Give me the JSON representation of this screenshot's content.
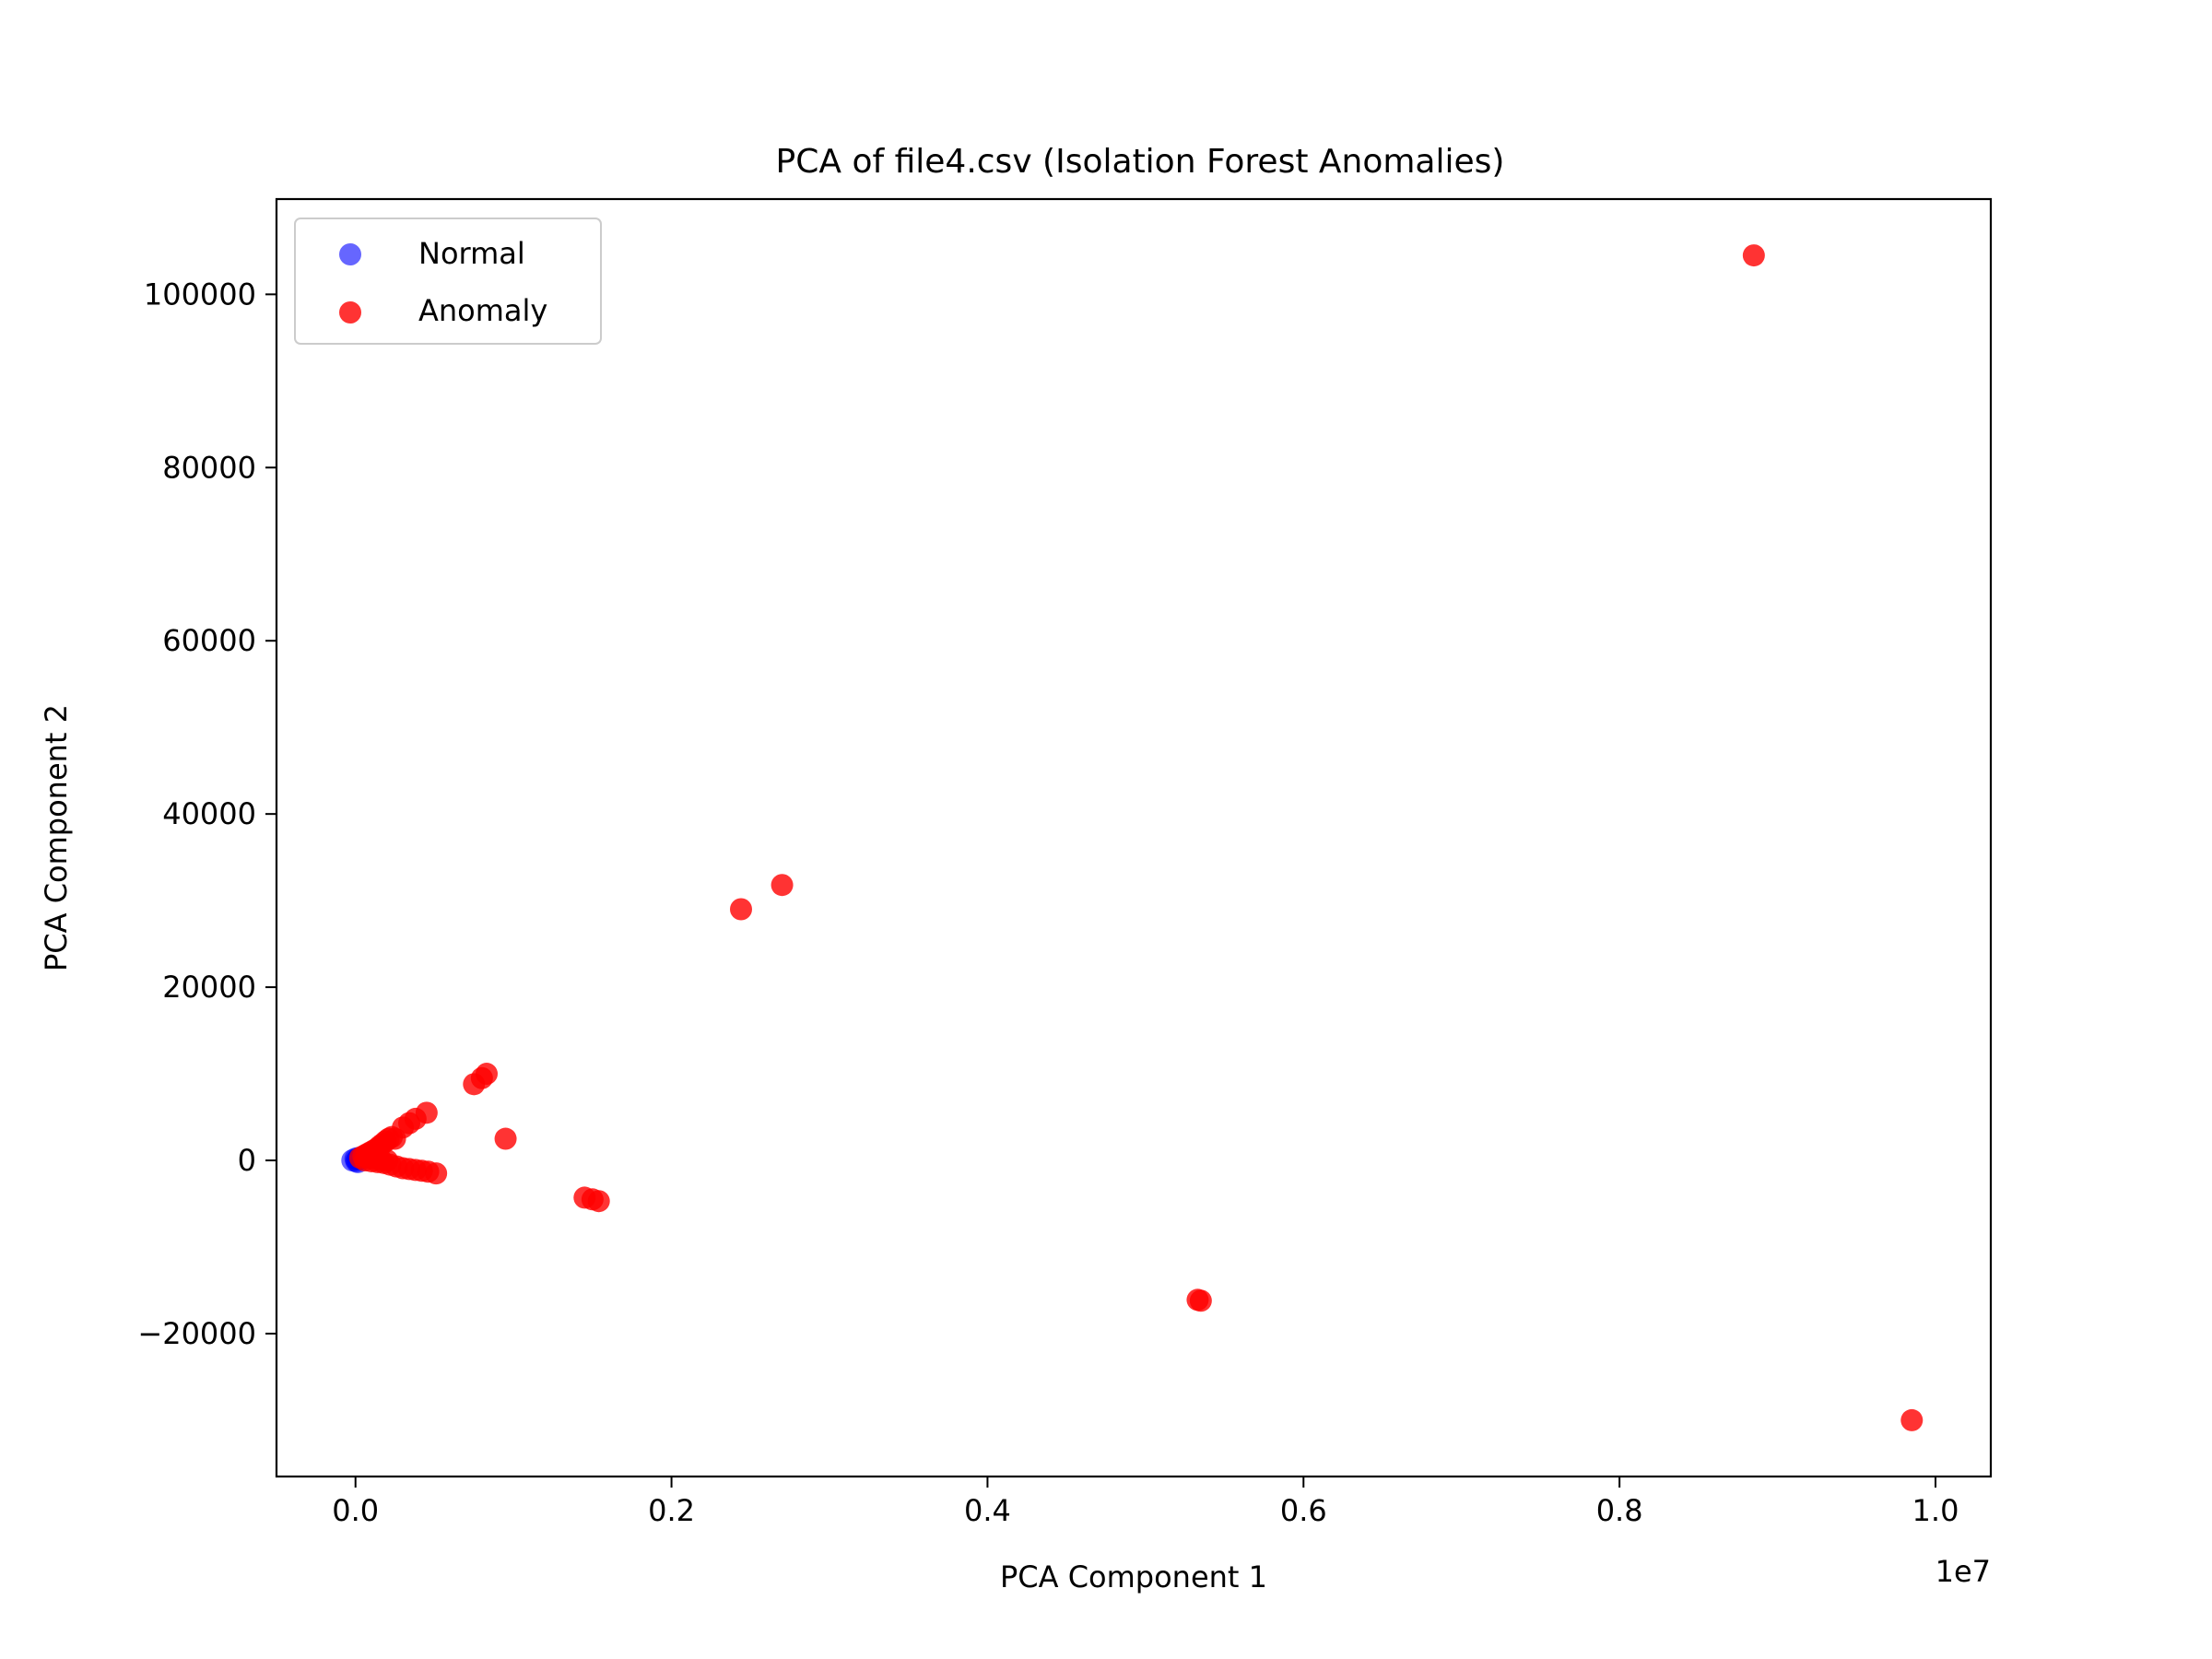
{
  "chart_data": {
    "type": "scatter",
    "title": "PCA of file4.csv (Isolation Forest Anomalies)",
    "xlabel": "PCA Component 1",
    "ylabel": "PCA Component 2",
    "x_offset_label": "1e7",
    "xlim": [
      -500000,
      10350000
    ],
    "ylim": [
      -36500,
      111000
    ],
    "x_ticks": [
      0,
      2000000,
      4000000,
      6000000,
      8000000,
      10000000
    ],
    "x_tick_labels": [
      "0.0",
      "0.2",
      "0.4",
      "0.6",
      "0.8",
      "1.0"
    ],
    "y_ticks": [
      -20000,
      0,
      20000,
      40000,
      60000,
      80000,
      100000
    ],
    "y_tick_labels": [
      "−20000",
      "0",
      "20000",
      "40000",
      "60000",
      "80000",
      "100000"
    ],
    "grid": false,
    "legend_position": "top-left",
    "series": [
      {
        "name": "Normal",
        "color": "#0000ff",
        "alpha": 0.6,
        "points": [
          {
            "x": -20000,
            "y": 0
          },
          {
            "x": 0,
            "y": 200
          },
          {
            "x": 5000,
            "y": -100
          },
          {
            "x": 10000,
            "y": 100
          },
          {
            "x": 20000,
            "y": 300
          },
          {
            "x": 15000,
            "y": -200
          }
        ]
      },
      {
        "name": "Anomaly",
        "color": "#ff0000",
        "alpha": 0.8,
        "points": [
          {
            "x": 30000,
            "y": 300
          },
          {
            "x": 50000,
            "y": 500
          },
          {
            "x": 70000,
            "y": 700
          },
          {
            "x": 90000,
            "y": 900
          },
          {
            "x": 110000,
            "y": 1100
          },
          {
            "x": 130000,
            "y": 1300
          },
          {
            "x": 150000,
            "y": 1600
          },
          {
            "x": 170000,
            "y": 1900
          },
          {
            "x": 190000,
            "y": 2200
          },
          {
            "x": 210000,
            "y": 2500
          },
          {
            "x": 230000,
            "y": 2700
          },
          {
            "x": 250000,
            "y": 2500
          },
          {
            "x": 300000,
            "y": 3800
          },
          {
            "x": 340000,
            "y": 4300
          },
          {
            "x": 380000,
            "y": 4800
          },
          {
            "x": 450000,
            "y": 5500
          },
          {
            "x": 60000,
            "y": 0
          },
          {
            "x": 100000,
            "y": -100
          },
          {
            "x": 140000,
            "y": -200
          },
          {
            "x": 180000,
            "y": -300
          },
          {
            "x": 220000,
            "y": -500
          },
          {
            "x": 260000,
            "y": -700
          },
          {
            "x": 300000,
            "y": -900
          },
          {
            "x": 340000,
            "y": -1000
          },
          {
            "x": 380000,
            "y": -1100
          },
          {
            "x": 420000,
            "y": -1200
          },
          {
            "x": 460000,
            "y": -1300
          },
          {
            "x": 510000,
            "y": -1500
          },
          {
            "x": 80000,
            "y": 300
          },
          {
            "x": 120000,
            "y": 200
          },
          {
            "x": 160000,
            "y": 100
          },
          {
            "x": 200000,
            "y": 0
          },
          {
            "x": 750000,
            "y": 8800
          },
          {
            "x": 800000,
            "y": 9500
          },
          {
            "x": 830000,
            "y": 10000
          },
          {
            "x": 950000,
            "y": 2500
          },
          {
            "x": 1450000,
            "y": -4300
          },
          {
            "x": 1500000,
            "y": -4500
          },
          {
            "x": 1540000,
            "y": -4700
          },
          {
            "x": 2440000,
            "y": 29000
          },
          {
            "x": 2700000,
            "y": 31800
          },
          {
            "x": 5330000,
            "y": -16100
          },
          {
            "x": 5350000,
            "y": -16200
          },
          {
            "x": 8850000,
            "y": 104500
          },
          {
            "x": 9850000,
            "y": -30000
          }
        ]
      }
    ]
  }
}
